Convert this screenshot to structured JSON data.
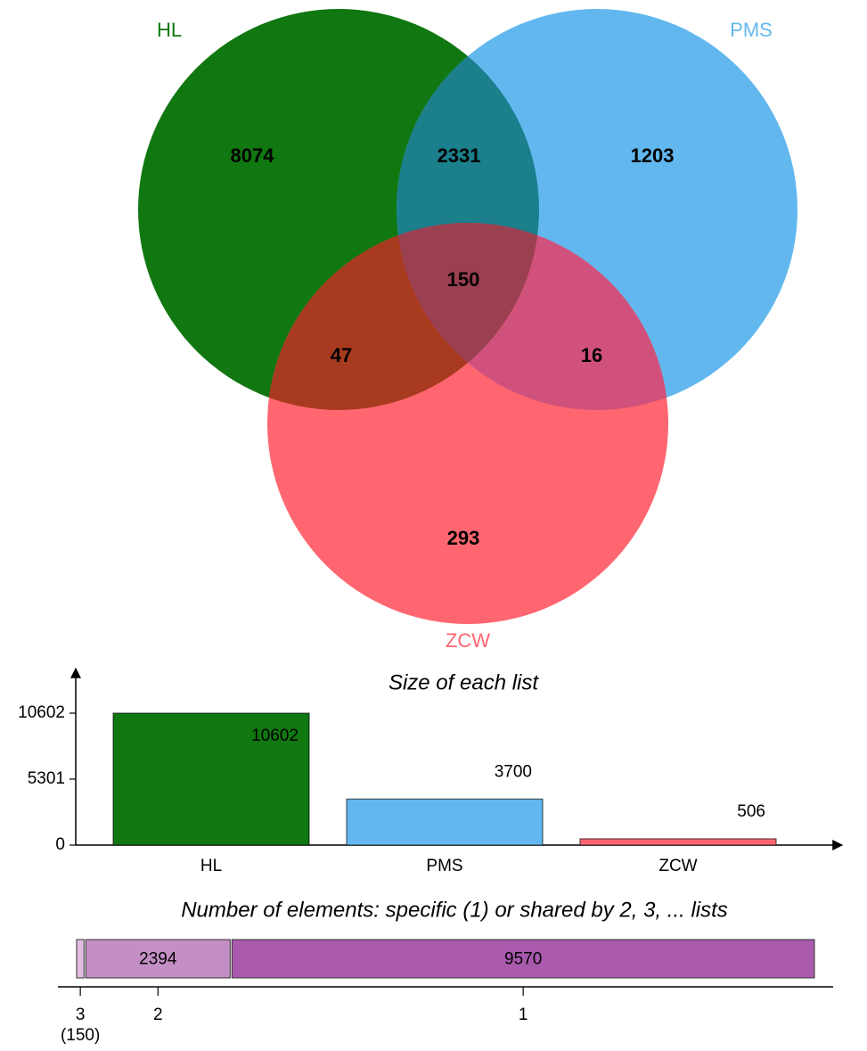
{
  "chart_data": [
    {
      "type": "venn",
      "sets": [
        {
          "name": "HL",
          "color": "#117711"
        },
        {
          "name": "PMS",
          "color": "#62b8ee"
        },
        {
          "name": "ZCW",
          "color": "#ff6670"
        }
      ],
      "regions": [
        {
          "sets": [
            "HL"
          ],
          "value": 8074
        },
        {
          "sets": [
            "HL",
            "PMS"
          ],
          "value": 2331
        },
        {
          "sets": [
            "PMS"
          ],
          "value": 1203
        },
        {
          "sets": [
            "HL",
            "PMS",
            "ZCW"
          ],
          "value": 150
        },
        {
          "sets": [
            "HL",
            "ZCW"
          ],
          "value": 47
        },
        {
          "sets": [
            "PMS",
            "ZCW"
          ],
          "value": 16
        },
        {
          "sets": [
            "ZCW"
          ],
          "value": 293
        }
      ]
    },
    {
      "type": "bar",
      "title": "Size of each list",
      "categories": [
        "HL",
        "PMS",
        "ZCW"
      ],
      "values": [
        10602,
        3700,
        506
      ],
      "colors": [
        "#117711",
        "#62b8ee",
        "#ff6670"
      ],
      "ylim": [
        0,
        14184
      ],
      "yticks": [
        0,
        5301,
        10602
      ]
    },
    {
      "type": "stacked-bar",
      "title": "Number of elements: specific (1) or shared by 2, 3, ... lists",
      "categories": [
        "3",
        "2",
        "1"
      ],
      "values": [
        150,
        2394,
        9570
      ],
      "value_labels": [
        "(150)",
        "2394",
        "9570"
      ],
      "colors": [
        "#e2bde2",
        "#c48fc4",
        "#a95aad"
      ],
      "xlim": [
        0,
        12114
      ]
    }
  ]
}
